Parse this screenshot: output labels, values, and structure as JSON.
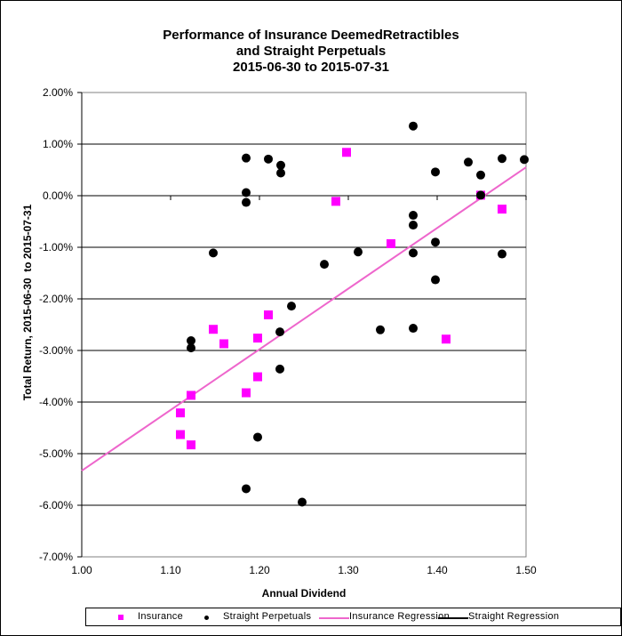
{
  "chart_data": {
    "type": "scatter",
    "title": [
      "Performance of Insurance DeemedRetractibles",
      "and Straight Perpetuals",
      "2015-06-30 to 2015-07-31"
    ],
    "xlabel": "Annual Dividend",
    "ylabel": "Total Return, 2015-06-30  to 2015-07-31",
    "xlim": [
      1.0,
      1.5
    ],
    "ylim": [
      -7.0,
      2.0
    ],
    "x_ticks": [
      "1.00",
      "1.10",
      "1.20",
      "1.30",
      "1.40",
      "1.50"
    ],
    "x_tick_values": [
      1.0,
      1.1,
      1.2,
      1.3,
      1.4,
      1.5
    ],
    "y_ticks": [
      "2.00%",
      "1.00%",
      "0.00%",
      "-1.00%",
      "-2.00%",
      "-3.00%",
      "-4.00%",
      "-5.00%",
      "-6.00%",
      "-7.00%"
    ],
    "y_tick_values": [
      2,
      1,
      0,
      -1,
      -2,
      -3,
      -4,
      -5,
      -6,
      -7
    ],
    "grid": true,
    "legend_position": "bottom",
    "series": [
      {
        "name": "Insurance",
        "marker": "square",
        "color": "#FF00FF",
        "points": [
          [
            1.298,
            0.84
          ],
          [
            1.286,
            -0.11
          ],
          [
            1.473,
            -0.26
          ],
          [
            1.449,
            0.01
          ],
          [
            1.348,
            -0.93
          ],
          [
            1.41,
            -2.78
          ],
          [
            1.21,
            -2.31
          ],
          [
            1.148,
            -2.59
          ],
          [
            1.16,
            -2.87
          ],
          [
            1.198,
            -2.76
          ],
          [
            1.198,
            -3.51
          ],
          [
            1.185,
            -3.82
          ],
          [
            1.123,
            -3.87
          ],
          [
            1.111,
            -4.21
          ],
          [
            1.111,
            -4.63
          ],
          [
            1.123,
            -4.83
          ]
        ]
      },
      {
        "name": "Straight Perpetuals",
        "marker": "circle",
        "color": "#000000",
        "points": [
          [
            1.373,
            1.35
          ],
          [
            1.498,
            0.7
          ],
          [
            1.473,
            0.72
          ],
          [
            1.435,
            0.65
          ],
          [
            1.449,
            0.4
          ],
          [
            1.398,
            0.46
          ],
          [
            1.449,
            0.01
          ],
          [
            1.373,
            -0.38
          ],
          [
            1.373,
            -0.57
          ],
          [
            1.398,
            -0.9
          ],
          [
            1.373,
            -1.11
          ],
          [
            1.473,
            -1.13
          ],
          [
            1.398,
            -1.63
          ],
          [
            1.336,
            -2.6
          ],
          [
            1.373,
            -2.57
          ],
          [
            1.273,
            -1.33
          ],
          [
            1.311,
            -1.09
          ],
          [
            1.236,
            -2.14
          ],
          [
            1.223,
            -2.64
          ],
          [
            1.123,
            -2.81
          ],
          [
            1.123,
            -2.95
          ],
          [
            1.223,
            -3.36
          ],
          [
            1.198,
            -4.68
          ],
          [
            1.185,
            -5.68
          ],
          [
            1.248,
            -5.94
          ],
          [
            1.185,
            0.73
          ],
          [
            1.21,
            0.71
          ],
          [
            1.224,
            0.59
          ],
          [
            1.224,
            0.44
          ],
          [
            1.185,
            0.06
          ],
          [
            1.185,
            -0.13
          ],
          [
            1.148,
            -1.11
          ]
        ]
      },
      {
        "name": "Insurance Regression",
        "type": "line",
        "color": "#EE66CC",
        "points": [
          [
            1.0,
            -5.33
          ],
          [
            1.5,
            0.55
          ]
        ]
      },
      {
        "name": "Straight Regression",
        "type": "line",
        "color": "#000000",
        "points": []
      }
    ]
  },
  "legend": {
    "insurance": "Insurance",
    "straight": "Straight Perpetuals",
    "insurance_regression": "Insurance Regression",
    "straight_regression": "Straight Regression"
  }
}
